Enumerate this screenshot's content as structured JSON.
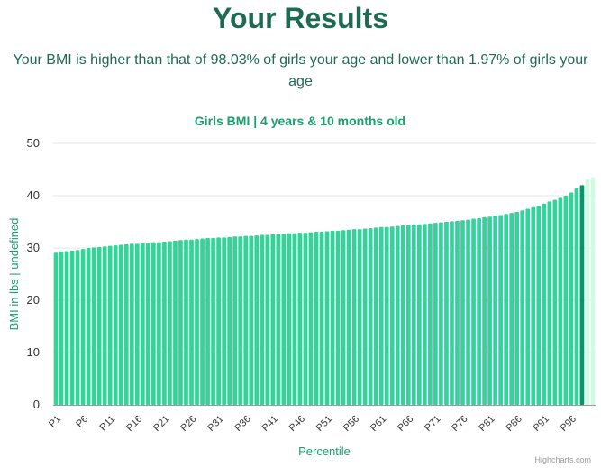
{
  "page": {
    "title": "Your Results",
    "summary": "Your BMI is higher than that of 98.03% of girls your age and lower than 1.97% of girls your age"
  },
  "chart_data": {
    "type": "bar",
    "title": "Girls BMI | 4 years & 10 months old",
    "xlabel": "Percentile",
    "ylabel": "BMI in lbs | undefined",
    "ylim": [
      0,
      50
    ],
    "yticks": [
      0,
      10,
      20,
      30,
      40,
      50
    ],
    "categories": [
      "P1",
      "P2",
      "P3",
      "P4",
      "P5",
      "P6",
      "P7",
      "P8",
      "P9",
      "P10",
      "P11",
      "P12",
      "P13",
      "P14",
      "P15",
      "P16",
      "P17",
      "P18",
      "P19",
      "P20",
      "P21",
      "P22",
      "P23",
      "P24",
      "P25",
      "P26",
      "P27",
      "P28",
      "P29",
      "P30",
      "P31",
      "P32",
      "P33",
      "P34",
      "P35",
      "P36",
      "P37",
      "P38",
      "P39",
      "P40",
      "P41",
      "P42",
      "P43",
      "P44",
      "P45",
      "P46",
      "P47",
      "P48",
      "P49",
      "P50",
      "P51",
      "P52",
      "P53",
      "P54",
      "P55",
      "P56",
      "P57",
      "P58",
      "P59",
      "P60",
      "P61",
      "P62",
      "P63",
      "P64",
      "P65",
      "P66",
      "P67",
      "P68",
      "P69",
      "P70",
      "P71",
      "P72",
      "P73",
      "P74",
      "P75",
      "P76",
      "P77",
      "P78",
      "P79",
      "P80",
      "P81",
      "P82",
      "P83",
      "P84",
      "P85",
      "P86",
      "P87",
      "P88",
      "P89",
      "P90",
      "P91",
      "P92",
      "P93",
      "P94",
      "P95",
      "P96",
      "P97",
      "P98",
      "P99",
      "P100"
    ],
    "visible_tick_labels": [
      "P1",
      "P6",
      "P11",
      "P16",
      "P21",
      "P26",
      "P31",
      "P36",
      "P41",
      "P46",
      "P51",
      "P56",
      "P61",
      "P66",
      "P71",
      "P76",
      "P81",
      "P86",
      "P91",
      "P96"
    ],
    "values": [
      29.1,
      29.3,
      29.4,
      29.5,
      29.6,
      29.8,
      30.0,
      30.1,
      30.2,
      30.3,
      30.4,
      30.5,
      30.6,
      30.7,
      30.8,
      30.8,
      30.9,
      31.0,
      31.1,
      31.1,
      31.2,
      31.3,
      31.4,
      31.5,
      31.6,
      31.6,
      31.7,
      31.8,
      31.9,
      31.9,
      32.0,
      32.0,
      32.1,
      32.2,
      32.2,
      32.3,
      32.3,
      32.4,
      32.5,
      32.5,
      32.6,
      32.6,
      32.7,
      32.8,
      32.8,
      32.9,
      32.9,
      33.0,
      33.1,
      33.1,
      33.2,
      33.3,
      33.3,
      33.4,
      33.5,
      33.6,
      33.6,
      33.7,
      33.8,
      33.9,
      34.0,
      34.0,
      34.1,
      34.2,
      34.3,
      34.4,
      34.5,
      34.5,
      34.6,
      34.7,
      34.8,
      34.9,
      35.0,
      35.1,
      35.2,
      35.3,
      35.4,
      35.6,
      35.7,
      35.9,
      36.0,
      36.2,
      36.3,
      36.5,
      36.7,
      36.9,
      37.2,
      37.5,
      37.8,
      38.1,
      38.5,
      38.9,
      39.2,
      39.6,
      40.0,
      40.6,
      41.4,
      42.0,
      43.2,
      43.5
    ],
    "highlight_index": 97,
    "colors": {
      "bar": "#34d399",
      "highlight": "#059669",
      "after": "#d1fae5",
      "grid": "#e6e6e6",
      "axis": "#999999"
    },
    "credit": "Highcharts.com",
    "legend": "none",
    "grid": true
  }
}
